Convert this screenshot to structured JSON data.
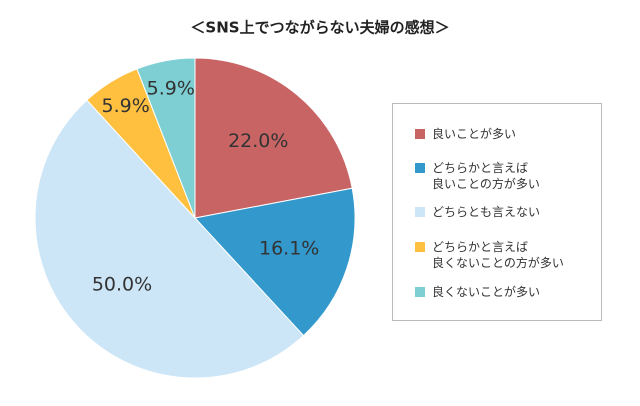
{
  "chart_data": {
    "type": "pie",
    "title": "＜SNS上でつながらない夫婦の感想＞",
    "categories": [
      "良いことが多い",
      "どちらかと言えば\n良いことの方が多い",
      "どちらとも言えない",
      "どちらかと言えば\n良くないことの方が多い",
      "良くないことが多い"
    ],
    "values": [
      22.0,
      16.1,
      50.0,
      5.9,
      5.9
    ],
    "value_labels": [
      "22.0%",
      "16.1%",
      "50.0%",
      "5.9%",
      "5.9%"
    ],
    "colors": [
      "#c86464",
      "#3399cc",
      "#cce6f7",
      "#ffc040",
      "#7dcfd3"
    ],
    "legend": "right"
  }
}
